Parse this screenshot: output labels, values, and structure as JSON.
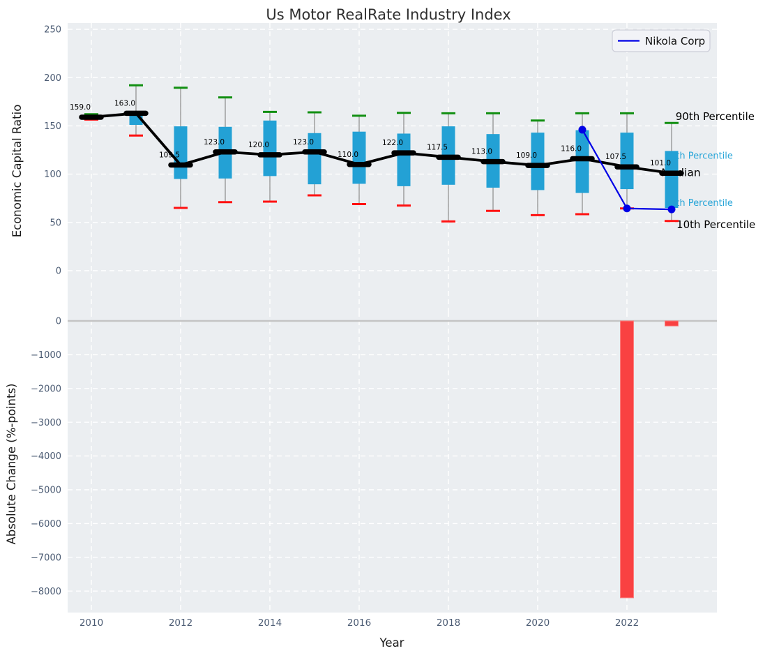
{
  "title": "Us Motor RealRate Industry Index",
  "legend": {
    "label": "Nikola Corp"
  },
  "colors": {
    "panel_bg": "#ebeef1",
    "grid": "#ffffff",
    "box_fill": "#23a1d5",
    "whisker": "#8a8a8a",
    "cap_high": "#118f11",
    "cap_low": "#ff1111",
    "median": "#000000",
    "nikola_line": "#0000e6",
    "bar_fill": "#f94142",
    "bar_edge": "#fb8080",
    "zero_line": "#c4c4c4",
    "tick_text": "#4b5b73",
    "axis_label_text": "#1a1a1a",
    "title_text": "#2f2f2f",
    "annotation_cyan": "#28a5d8",
    "legend_bg": "#f2f3f7",
    "legend_border": "#ccced8"
  },
  "chart_data": [
    {
      "type": "box",
      "title": "Us Motor RealRate Industry Index",
      "ylabel": "Economic Capital Ratio",
      "ylim": [
        -42,
        257
      ],
      "yticks": [
        250,
        200,
        150,
        100,
        50,
        0
      ],
      "xticks": [
        2010,
        2012,
        2014,
        2016,
        2018,
        2020,
        2022
      ],
      "grid": true,
      "legend_position": "upper right",
      "boxes": [
        {
          "year": 2010,
          "p90": 162,
          "p75": 161,
          "median": 159,
          "p25": 157.5,
          "p10": 156.5,
          "label": "159.0"
        },
        {
          "year": 2011,
          "p90": 192,
          "p75": 164,
          "median": 163,
          "p25": 151,
          "p10": 140,
          "label": "163.0"
        },
        {
          "year": 2012,
          "p90": 189.5,
          "p75": 149.5,
          "median": 109.5,
          "p25": 95,
          "p10": 65,
          "label": "109.5"
        },
        {
          "year": 2013,
          "p90": 179.5,
          "p75": 149,
          "median": 123,
          "p25": 95.5,
          "p10": 71,
          "label": "123.0"
        },
        {
          "year": 2014,
          "p90": 164.5,
          "p75": 155.5,
          "median": 120,
          "p25": 98,
          "p10": 71.5,
          "label": "120.0"
        },
        {
          "year": 2015,
          "p90": 164,
          "p75": 142.5,
          "median": 123,
          "p25": 89.5,
          "p10": 78,
          "label": "123.0"
        },
        {
          "year": 2016,
          "p90": 160.5,
          "p75": 144,
          "median": 110,
          "p25": 90,
          "p10": 69,
          "label": "110.0"
        },
        {
          "year": 2017,
          "p90": 163.5,
          "p75": 142,
          "median": 122,
          "p25": 87.5,
          "p10": 67.5,
          "label": "122.0"
        },
        {
          "year": 2018,
          "p90": 163,
          "p75": 149.5,
          "median": 117.5,
          "p25": 89,
          "p10": 51,
          "label": "117.5"
        },
        {
          "year": 2019,
          "p90": 163,
          "p75": 141.5,
          "median": 113,
          "p25": 86,
          "p10": 62,
          "label": "113.0"
        },
        {
          "year": 2020,
          "p90": 155.5,
          "p75": 143,
          "median": 109,
          "p25": 83.5,
          "p10": 57.5,
          "label": "109.0"
        },
        {
          "year": 2021,
          "p90": 163,
          "p75": 145.5,
          "median": 116,
          "p25": 80.5,
          "p10": 58.5,
          "label": "116.0"
        },
        {
          "year": 2022,
          "p90": 163,
          "p75": 143,
          "median": 107.5,
          "p25": 84.5,
          "p10": 64.5,
          "label": "107.5"
        },
        {
          "year": 2023,
          "p90": 153,
          "p75": 124,
          "median": 101,
          "p25": 65,
          "p10": 51.5,
          "label": "101.0"
        }
      ],
      "series": [
        {
          "name": "Nikola Corp",
          "x": [
            2021,
            2022,
            2023
          ],
          "y": [
            146,
            64.5,
            63.5
          ]
        }
      ],
      "annotations": [
        {
          "text": "90th Percentile",
          "x": 2023.09,
          "y": 159.7,
          "style": "black",
          "size": 15
        },
        {
          "text": "75th Percentile",
          "x": 2022.84,
          "y": 119.2,
          "style": "cyan",
          "size": 13
        },
        {
          "text": "Median",
          "x": 2022.77,
          "y": 101.9,
          "style": "black",
          "size": 15.5
        },
        {
          "text": "25th Percentile",
          "x": 2022.84,
          "y": 70.6,
          "style": "cyan",
          "size": 13
        },
        {
          "text": "10th Percentile",
          "x": 2023.11,
          "y": 47.7,
          "style": "black",
          "size": 15
        }
      ]
    },
    {
      "type": "bar",
      "xlabel": "Year",
      "ylabel": "Absolute Change (%-points)",
      "ylim": [
        -8600,
        310
      ],
      "yticks": [
        0,
        -1000,
        -2000,
        -3000,
        -4000,
        -5000,
        -6000,
        -7000,
        -8000
      ],
      "xticks": [
        2010,
        2012,
        2014,
        2016,
        2018,
        2020,
        2022
      ],
      "grid": true,
      "bars": [
        {
          "x": 2022,
          "value": -8200
        },
        {
          "x": 2023,
          "value": -150
        }
      ]
    }
  ]
}
